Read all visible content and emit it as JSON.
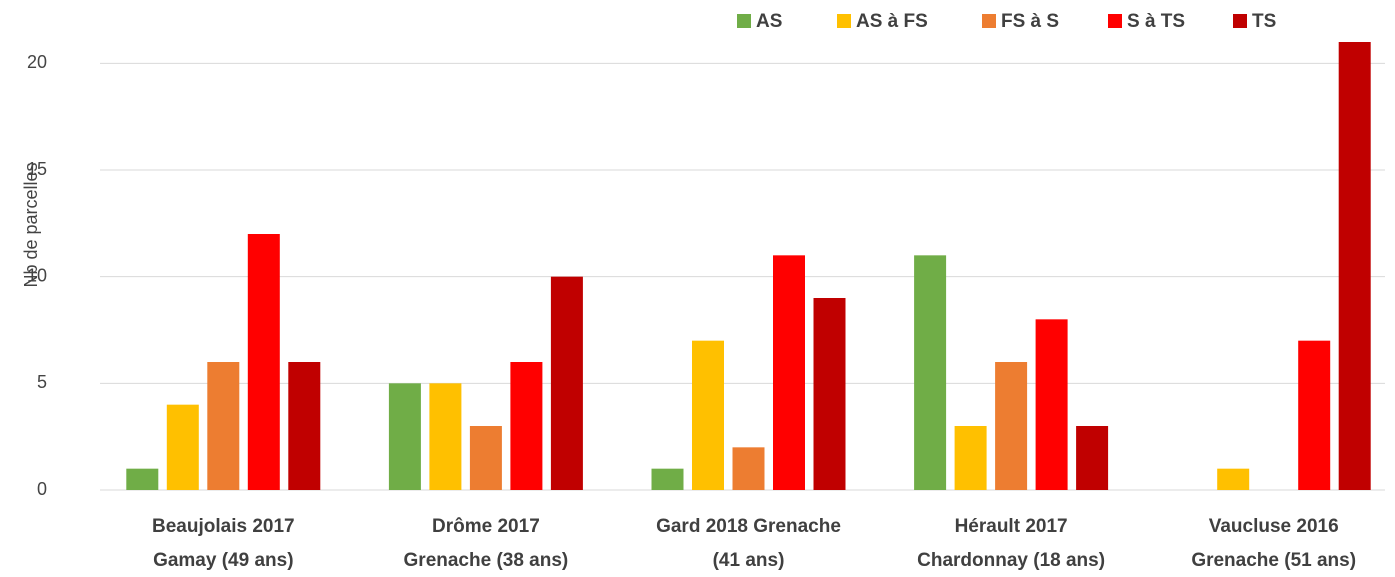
{
  "chart_data": {
    "type": "bar",
    "ylabel": "Nb de parcelles",
    "categories": [
      [
        "Beaujolais 2017",
        "Gamay (49 ans)"
      ],
      [
        "Drôme 2017",
        "Grenache (38 ans)"
      ],
      [
        "Gard 2018 Grenache",
        "(41 ans)"
      ],
      [
        "Hérault 2017",
        "Chardonnay (18 ans)"
      ],
      [
        "Vaucluse 2016",
        "Grenache (51 ans)"
      ]
    ],
    "series": [
      {
        "name": "AS",
        "color": "#70ad47",
        "values": [
          1,
          5,
          1,
          11,
          0
        ]
      },
      {
        "name": "AS à FS",
        "color": "#ffc000",
        "values": [
          4,
          5,
          7,
          3,
          1
        ]
      },
      {
        "name": "FS à S",
        "color": "#ed7d31",
        "values": [
          6,
          3,
          2,
          6,
          0
        ]
      },
      {
        "name": "S à TS",
        "color": "#ff0000",
        "values": [
          12,
          6,
          11,
          8,
          7
        ]
      },
      {
        "name": "TS",
        "color": "#c00000",
        "values": [
          6,
          10,
          9,
          3,
          21
        ]
      }
    ],
    "ylim": [
      0,
      21
    ],
    "yticks": [
      0,
      5,
      10,
      15,
      20
    ],
    "grid": true,
    "legend": "top"
  }
}
